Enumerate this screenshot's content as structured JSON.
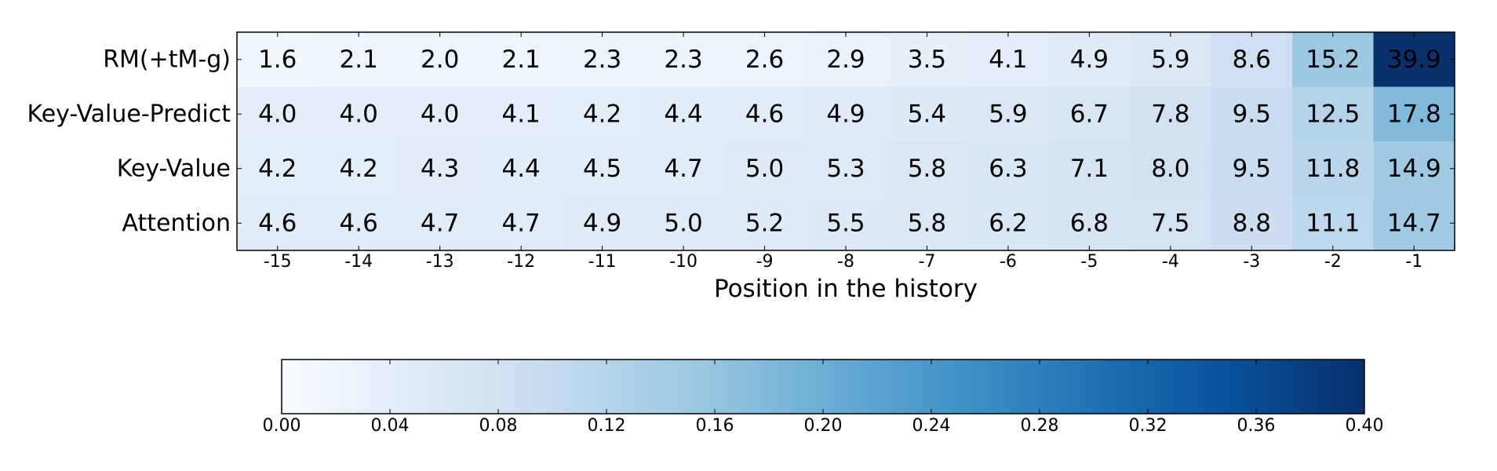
{
  "chart_data": {
    "type": "heatmap",
    "title": "",
    "xlabel": "Position in the history",
    "ylabel": "",
    "x_categories": [
      "-15",
      "-14",
      "-13",
      "-12",
      "-11",
      "-10",
      "-9",
      "-8",
      "-7",
      "-6",
      "-5",
      "-4",
      "-3",
      "-2",
      "-1"
    ],
    "y_categories": [
      "RM(+tM-g)",
      "Key-Value-Predict",
      "Key-Value",
      "Attention"
    ],
    "values": [
      [
        1.6,
        2.1,
        2.0,
        2.1,
        2.3,
        2.3,
        2.6,
        2.9,
        3.5,
        4.1,
        4.9,
        5.9,
        8.6,
        15.2,
        39.9
      ],
      [
        4.0,
        4.0,
        4.0,
        4.1,
        4.2,
        4.4,
        4.6,
        4.9,
        5.4,
        5.9,
        6.7,
        7.8,
        9.5,
        12.5,
        17.8
      ],
      [
        4.2,
        4.2,
        4.3,
        4.4,
        4.5,
        4.7,
        5.0,
        5.3,
        5.8,
        6.3,
        7.1,
        8.0,
        9.5,
        11.8,
        14.9
      ],
      [
        4.6,
        4.6,
        4.7,
        4.7,
        4.9,
        5.0,
        5.2,
        5.5,
        5.8,
        6.2,
        6.8,
        7.5,
        8.8,
        11.1,
        14.7
      ]
    ],
    "value_scale": 0.01,
    "colormap": "Blues",
    "colorbar": {
      "range": [
        0.0,
        0.4
      ],
      "orientation": "horizontal",
      "position": "below",
      "ticks": [
        "0.00",
        "0.04",
        "0.08",
        "0.12",
        "0.16",
        "0.20",
        "0.24",
        "0.28",
        "0.32",
        "0.36",
        "0.40"
      ]
    },
    "grid": false
  }
}
